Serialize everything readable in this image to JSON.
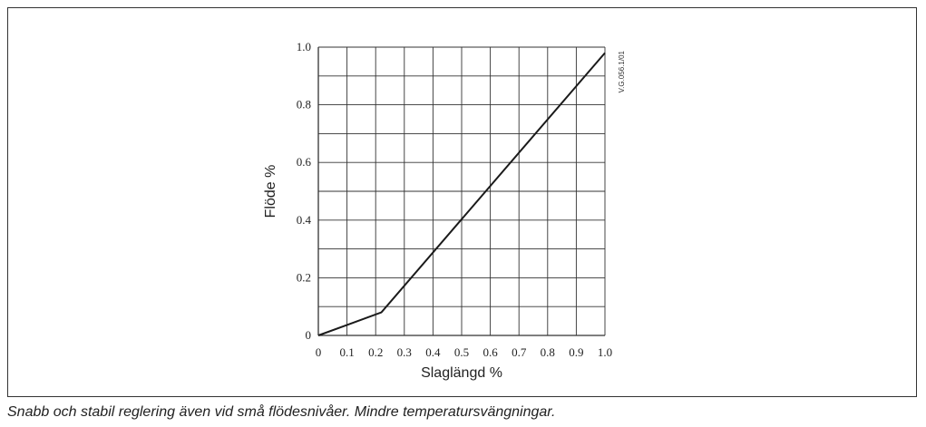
{
  "chart_data": {
    "type": "line",
    "xlabel": "Slaglängd %",
    "ylabel": "Flöde %",
    "code": "V.G.056.1/01",
    "xlim": [
      0,
      1.0
    ],
    "ylim": [
      0,
      1.0
    ],
    "x_ticks": [
      "0",
      "0.1",
      "0.2",
      "0.3",
      "0.4",
      "0.5",
      "0.6",
      "0.7",
      "0.8",
      "0.9",
      "1.0"
    ],
    "y_ticks": [
      "0",
      "0.2",
      "0.4",
      "0.6",
      "0.8",
      "1.0"
    ],
    "grid": true,
    "series": [
      {
        "x": [
          0,
          0.22,
          1.0
        ],
        "y": [
          0,
          0.08,
          0.98
        ]
      }
    ]
  },
  "caption": "Snabb och stabil reglering även vid små flödesnivåer. Mindre temperatursvängningar."
}
